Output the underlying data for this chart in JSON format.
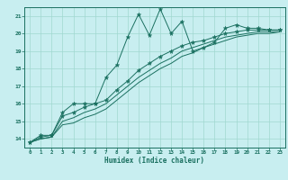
{
  "title": "",
  "xlabel": "Humidex (Indice chaleur)",
  "bg_color": "#c8eef0",
  "grid_color": "#a0d8d0",
  "line_color": "#1a7060",
  "xlim": [
    -0.5,
    23.5
  ],
  "ylim": [
    13.5,
    21.5
  ],
  "yticks": [
    14,
    15,
    16,
    17,
    18,
    19,
    20,
    21
  ],
  "xticks": [
    0,
    1,
    2,
    3,
    4,
    5,
    6,
    7,
    8,
    9,
    10,
    11,
    12,
    13,
    14,
    15,
    16,
    17,
    18,
    19,
    20,
    21,
    22,
    23
  ],
  "series": [
    {
      "x": [
        0,
        1,
        2,
        3,
        4,
        5,
        6,
        7,
        8,
        9,
        10,
        11,
        12,
        13,
        14,
        15,
        16,
        17,
        18,
        19,
        20,
        21,
        22,
        23
      ],
      "y": [
        13.8,
        14.2,
        14.2,
        15.5,
        16.0,
        16.0,
        16.0,
        17.5,
        18.2,
        19.8,
        21.1,
        19.9,
        21.4,
        20.0,
        20.7,
        19.0,
        19.2,
        19.5,
        20.3,
        20.5,
        20.3,
        20.3,
        20.2,
        20.2
      ],
      "marker": true
    },
    {
      "x": [
        0,
        1,
        2,
        3,
        4,
        5,
        6,
        7,
        8,
        9,
        10,
        11,
        12,
        13,
        14,
        15,
        16,
        17,
        18,
        19,
        20,
        21,
        22,
        23
      ],
      "y": [
        13.8,
        14.1,
        14.2,
        15.3,
        15.5,
        15.8,
        16.0,
        16.2,
        16.8,
        17.3,
        17.9,
        18.3,
        18.7,
        19.0,
        19.3,
        19.5,
        19.6,
        19.8,
        20.0,
        20.1,
        20.2,
        20.2,
        20.2,
        20.2
      ],
      "marker": true
    },
    {
      "x": [
        0,
        1,
        2,
        3,
        4,
        5,
        6,
        7,
        8,
        9,
        10,
        11,
        12,
        13,
        14,
        15,
        16,
        17,
        18,
        19,
        20,
        21,
        22,
        23
      ],
      "y": [
        13.8,
        14.0,
        14.1,
        15.0,
        15.2,
        15.5,
        15.7,
        16.0,
        16.5,
        17.0,
        17.5,
        17.9,
        18.3,
        18.6,
        19.0,
        19.2,
        19.4,
        19.6,
        19.8,
        19.9,
        20.0,
        20.1,
        20.1,
        20.1
      ],
      "marker": false
    },
    {
      "x": [
        0,
        1,
        2,
        3,
        4,
        5,
        6,
        7,
        8,
        9,
        10,
        11,
        12,
        13,
        14,
        15,
        16,
        17,
        18,
        19,
        20,
        21,
        22,
        23
      ],
      "y": [
        13.8,
        14.0,
        14.1,
        14.8,
        14.9,
        15.2,
        15.4,
        15.7,
        16.2,
        16.7,
        17.2,
        17.6,
        18.0,
        18.3,
        18.7,
        18.9,
        19.2,
        19.4,
        19.6,
        19.8,
        19.9,
        20.0,
        20.0,
        20.1
      ],
      "marker": false
    }
  ]
}
